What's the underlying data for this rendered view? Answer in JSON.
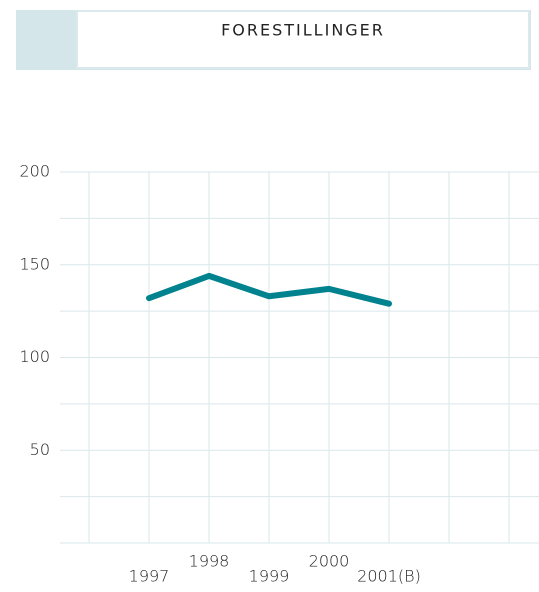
{
  "chart_data": {
    "type": "line",
    "title": "FORESTILLINGER",
    "categories": [
      null,
      "1997",
      "1998",
      "1999",
      "2000",
      "2001(B)",
      null,
      null
    ],
    "series": [
      {
        "name": null,
        "color": "#00838f",
        "values": [
          null,
          132,
          144,
          133,
          137,
          129,
          null,
          null
        ]
      }
    ],
    "ylim": [
      0,
      200
    ],
    "yticks": [
      50,
      100,
      150,
      200
    ],
    "grid": true
  }
}
